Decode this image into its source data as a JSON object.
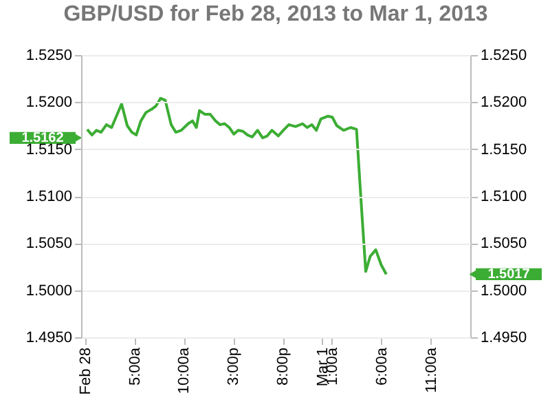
{
  "chart_data": {
    "type": "line",
    "title": "GBP/USD for Feb 28, 2013 to Mar 1, 2013",
    "x": [
      "2013-02-28T00:13",
      "2013-02-28T00:42",
      "2013-02-28T01:09",
      "2013-02-28T01:37",
      "2013-02-28T02:10",
      "2013-02-28T02:41",
      "2013-02-28T03:42",
      "2013-02-28T04:16",
      "2013-02-28T04:44",
      "2013-02-28T05:11",
      "2013-02-28T05:39",
      "2013-02-28T06:10",
      "2013-02-28T06:49",
      "2013-02-28T07:11",
      "2013-02-28T07:39",
      "2013-02-28T08:07",
      "2013-02-28T08:43",
      "2013-02-28T09:11",
      "2013-02-28T09:44",
      "2013-02-28T10:26",
      "2013-02-28T10:53",
      "2013-02-28T11:16",
      "2013-02-28T11:35",
      "2013-02-28T12:08",
      "2013-02-28T12:40",
      "2013-02-28T13:13",
      "2013-02-28T13:40",
      "2013-02-28T14:08",
      "2013-02-28T14:36",
      "2013-02-28T15:04",
      "2013-02-28T15:31",
      "2013-02-28T15:59",
      "2013-02-28T16:27",
      "2013-02-28T16:55",
      "2013-02-28T17:28",
      "2013-02-28T17:59",
      "2013-02-28T18:26",
      "2013-02-28T18:55",
      "2013-02-28T19:34",
      "2013-02-28T20:04",
      "2013-02-28T20:38",
      "2013-02-28T21:19",
      "2013-02-28T22:01",
      "2013-02-28T22:29",
      "2013-02-28T22:57",
      "2013-02-28T23:25",
      "2013-02-28T23:52",
      "2013-03-01T00:34",
      "2013-03-01T01:02",
      "2013-03-01T01:29",
      "2013-03-01T02:11",
      "2013-03-01T02:53",
      "2013-03-01T03:29",
      "2013-03-01T03:57",
      "2013-03-01T04:25",
      "2013-03-01T04:52",
      "2013-03-01T05:26",
      "2013-03-01T05:59",
      "2013-03-01T06:30"
    ],
    "series": [
      {
        "color": "#3cad34",
        "values": [
          1.5171,
          1.5165,
          1.517,
          1.5168,
          1.5176,
          1.5173,
          1.5198,
          1.5175,
          1.5168,
          1.5165,
          1.518,
          1.5189,
          1.5193,
          1.5196,
          1.5204,
          1.5202,
          1.5176,
          1.5168,
          1.517,
          1.5177,
          1.518,
          1.5173,
          1.5191,
          1.5187,
          1.5187,
          1.518,
          1.5176,
          1.5177,
          1.5173,
          1.5166,
          1.517,
          1.5169,
          1.5165,
          1.5163,
          1.517,
          1.5162,
          1.5164,
          1.517,
          1.5164,
          1.517,
          1.5176,
          1.5174,
          1.5177,
          1.5173,
          1.5176,
          1.517,
          1.5182,
          1.5185,
          1.5184,
          1.5175,
          1.517,
          1.5173,
          1.5171,
          1.5094,
          1.502,
          1.5036,
          1.5043,
          1.5027,
          1.5017
        ]
      }
    ],
    "xlim": [
      "2013-02-27T23:36",
      "2013-03-01T15:00"
    ],
    "xticks": [
      {
        "value": "2013-02-28T00:00",
        "label": "Feb 28"
      },
      {
        "value": "2013-02-28T05:00",
        "label": "5:00a"
      },
      {
        "value": "2013-02-28T10:00",
        "label": "10:00a"
      },
      {
        "value": "2013-02-28T15:00",
        "label": "3:00p"
      },
      {
        "value": "2013-02-28T20:00",
        "label": "8:00p"
      },
      {
        "value": "2013-03-01T00:00",
        "label": "Mar 1"
      },
      {
        "value": "2013-03-01T01:00",
        "label": "1:00a"
      },
      {
        "value": "2013-03-01T06:00",
        "label": "6:00a"
      },
      {
        "value": "2013-03-01T11:00",
        "label": "11:00a"
      }
    ],
    "ylim": [
      1.495,
      1.525
    ],
    "yticks": [
      {
        "value": 1.495,
        "label": "1.4950"
      },
      {
        "value": 1.5,
        "label": "1.5000"
      },
      {
        "value": 1.505,
        "label": "1.5050"
      },
      {
        "value": 1.51,
        "label": "1.5100"
      },
      {
        "value": 1.515,
        "label": "1.5150"
      },
      {
        "value": 1.52,
        "label": "1.5200"
      },
      {
        "value": 1.525,
        "label": "1.5250"
      }
    ],
    "y2lim": [
      1.495,
      1.525
    ],
    "y2ticks": [
      {
        "value": 1.495,
        "label": "1.4950"
      },
      {
        "value": 1.5,
        "label": "1.5000"
      },
      {
        "value": 1.505,
        "label": "1.5050"
      },
      {
        "value": 1.51,
        "label": "1.5100"
      },
      {
        "value": 1.515,
        "label": "1.5150"
      },
      {
        "value": 1.52,
        "label": "1.5200"
      },
      {
        "value": 1.525,
        "label": "1.5250"
      }
    ],
    "annotations": [
      "1.5162",
      "1.5017"
    ],
    "grid": "y",
    "marker": "none",
    "line_style": "solid"
  }
}
